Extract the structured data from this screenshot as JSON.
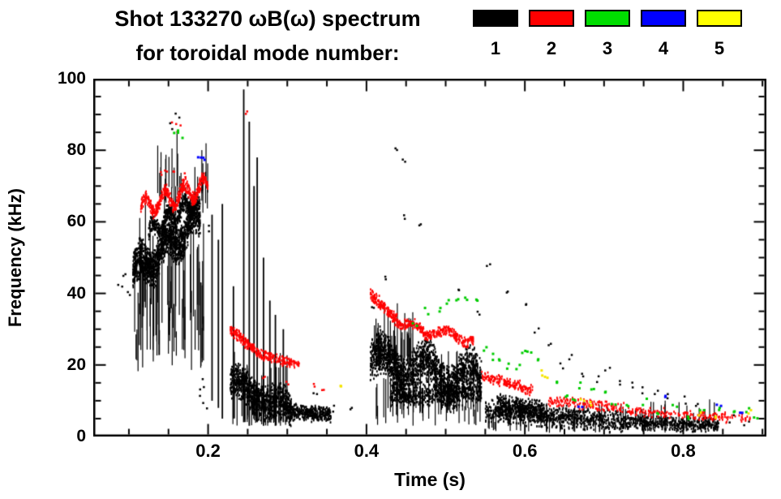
{
  "header": {
    "title_line1": "Shot 133270 ωB(ω) spectrum",
    "title_line2": "for toroidal mode number:"
  },
  "legend": {
    "modes": [
      {
        "label": "1",
        "color": "#000000"
      },
      {
        "label": "2",
        "color": "#ff0000"
      },
      {
        "label": "3",
        "color": "#00dd00"
      },
      {
        "label": "4",
        "color": "#0000ff"
      },
      {
        "label": "5",
        "color": "#ffff00"
      }
    ]
  },
  "chart_data": {
    "type": "scatter",
    "title": "Shot 133270 ωB(ω) spectrum for toroidal mode number: 1-5",
    "xlabel": "Time (s)",
    "ylabel": "Frequency (kHz)",
    "xlim": [
      0.055,
      0.905
    ],
    "ylim": [
      0,
      100
    ],
    "x_major_ticks": [
      0.2,
      0.4,
      0.6,
      0.8
    ],
    "x_tick_labels": [
      "0.2",
      "0.4",
      "0.6",
      "0.8"
    ],
    "x_minor_step": 0.05,
    "y_major_ticks": [
      0,
      20,
      40,
      60,
      80,
      100
    ],
    "y_tick_labels": [
      "0",
      "20",
      "40",
      "60",
      "80",
      "100"
    ],
    "y_minor_step": 5,
    "grid": false,
    "legend_position": "top-right",
    "series_colors": {
      "1": "#000000",
      "2": "#ff0000",
      "3": "#00cc00",
      "4": "#0000ff",
      "5": "#f5e400"
    },
    "clusters": [
      {
        "mode": "1",
        "type": "band",
        "t": [
          0.105,
          0.19
        ],
        "f": [
          45,
          61
        ],
        "spread": 6,
        "wobble": [
          3,
          2.5
        ],
        "n": 1500
      },
      {
        "mode": "1",
        "type": "band",
        "t": [
          0.125,
          0.185
        ],
        "f": [
          57,
          66
        ],
        "spread": 3,
        "wobble": [
          2,
          3
        ],
        "n": 500
      },
      {
        "mode": "1",
        "type": "streaks",
        "t": [
          0.105,
          0.195
        ],
        "fbase": [
          18,
          38
        ],
        "flen": [
          6,
          30
        ],
        "n": 70
      },
      {
        "mode": "1",
        "type": "streaks",
        "t": [
          0.13,
          0.2
        ],
        "fbase": [
          62,
          70
        ],
        "flen": [
          4,
          16
        ],
        "n": 30
      },
      {
        "mode": "1",
        "type": "lines",
        "lines": [
          [
            0.205,
            10,
            62
          ],
          [
            0.213,
            8,
            55
          ],
          [
            0.218,
            5,
            65
          ],
          [
            0.232,
            5,
            42
          ],
          [
            0.245,
            4,
            97
          ],
          [
            0.252,
            3,
            88
          ],
          [
            0.258,
            6,
            70
          ],
          [
            0.262,
            4,
            78
          ],
          [
            0.27,
            3,
            50
          ],
          [
            0.278,
            4,
            38
          ],
          [
            0.285,
            3,
            34
          ],
          [
            0.295,
            4,
            30
          ]
        ]
      },
      {
        "mode": "1",
        "type": "band",
        "t": [
          0.228,
          0.305
        ],
        "f": [
          15,
          7
        ],
        "spread": 5.5,
        "wobble": [
          1.5,
          1.5
        ],
        "n": 900
      },
      {
        "mode": "1",
        "type": "band",
        "t": [
          0.3,
          0.355
        ],
        "f": [
          7,
          6
        ],
        "spread": 2.5,
        "n": 350
      },
      {
        "mode": "1",
        "type": "streaks",
        "t": [
          0.23,
          0.3
        ],
        "fbase": [
          3,
          6
        ],
        "flen": [
          5,
          20
        ],
        "n": 40
      },
      {
        "mode": "1",
        "type": "band",
        "t": [
          0.405,
          0.545
        ],
        "f": [
          21,
          15
        ],
        "spread": 7,
        "wobble": [
          3.5,
          2.5
        ],
        "n": 1800
      },
      {
        "mode": "1",
        "type": "streaks",
        "t": [
          0.405,
          0.46
        ],
        "fbase": [
          18,
          24
        ],
        "flen": [
          5,
          16
        ],
        "n": 35
      },
      {
        "mode": "1",
        "type": "band",
        "t": [
          0.43,
          0.545
        ],
        "f": [
          11,
          12
        ],
        "spread": 3.5,
        "n": 500
      },
      {
        "mode": "1",
        "type": "streaks",
        "t": [
          0.405,
          0.545
        ],
        "fbase": [
          3,
          8
        ],
        "flen": [
          4,
          18
        ],
        "n": 50
      },
      {
        "mode": "1",
        "type": "band",
        "t": [
          0.55,
          0.73
        ],
        "f": [
          7,
          4
        ],
        "spread": 3.5,
        "n": 800
      },
      {
        "mode": "1",
        "type": "band",
        "t": [
          0.565,
          0.625
        ],
        "f": [
          9,
          7
        ],
        "spread": 3.5,
        "n": 350
      },
      {
        "mode": "1",
        "type": "band",
        "t": [
          0.73,
          0.845
        ],
        "f": [
          4,
          3
        ],
        "spread": 2.2,
        "n": 420
      },
      {
        "mode": "1",
        "type": "streaks",
        "t": [
          0.55,
          0.84
        ],
        "fbase": [
          1,
          3
        ],
        "flen": [
          2,
          8
        ],
        "n": 60
      },
      {
        "mode": "1",
        "type": "points",
        "size": 2.5,
        "reps": 2,
        "jitter": [
          0.004,
          1.2
        ],
        "points": [
          [
            0.09,
            42
          ],
          [
            0.095,
            45
          ],
          [
            0.1,
            40
          ],
          [
            0.155,
            87
          ],
          [
            0.16,
            90
          ],
          [
            0.205,
            58
          ],
          [
            0.335,
            12
          ],
          [
            0.36,
            8
          ],
          [
            0.38,
            7
          ],
          [
            0.44,
            80
          ],
          [
            0.445,
            77
          ],
          [
            0.45,
            62
          ],
          [
            0.47,
            60
          ],
          [
            0.52,
            42
          ],
          [
            0.54,
            35
          ],
          [
            0.555,
            48
          ],
          [
            0.58,
            40
          ],
          [
            0.6,
            37
          ],
          [
            0.615,
            30
          ],
          [
            0.63,
            25
          ],
          [
            0.645,
            20
          ],
          [
            0.66,
            22
          ],
          [
            0.675,
            18
          ],
          [
            0.69,
            16
          ],
          [
            0.705,
            19
          ],
          [
            0.72,
            15
          ],
          [
            0.735,
            14
          ],
          [
            0.75,
            13
          ],
          [
            0.765,
            12
          ],
          [
            0.78,
            11
          ],
          [
            0.8,
            10
          ],
          [
            0.815,
            9
          ],
          [
            0.86,
            5
          ],
          [
            0.88,
            4
          ],
          [
            0.19,
            12
          ],
          [
            0.193,
            15
          ],
          [
            0.196,
            9
          ],
          [
            0.425,
            44
          ],
          [
            0.41,
            35
          ]
        ]
      },
      {
        "mode": "2",
        "type": "band",
        "t": [
          0.115,
          0.2
        ],
        "f": [
          64,
          70
        ],
        "spread": 2.2,
        "wobble": [
          2.5,
          3.5
        ],
        "n": 500
      },
      {
        "mode": "2",
        "type": "points",
        "size": 2.5,
        "reps": 2,
        "jitter": [
          0.003,
          1
        ],
        "points": [
          [
            0.14,
            74
          ],
          [
            0.148,
            75
          ],
          [
            0.155,
            74
          ],
          [
            0.157,
            88
          ],
          [
            0.163,
            86
          ],
          [
            0.17,
            73
          ],
          [
            0.25,
            90
          ],
          [
            0.27,
            17
          ],
          [
            0.3,
            15
          ],
          [
            0.335,
            14
          ],
          [
            0.345,
            13
          ]
        ]
      },
      {
        "mode": "2",
        "type": "band",
        "t": [
          0.228,
          0.265
        ],
        "f": [
          30,
          23
        ],
        "spread": 1.8,
        "n": 160
      },
      {
        "mode": "2",
        "type": "band",
        "t": [
          0.265,
          0.315
        ],
        "f": [
          23,
          20
        ],
        "spread": 1.6,
        "n": 140
      },
      {
        "mode": "2",
        "type": "band",
        "t": [
          0.405,
          0.445
        ],
        "f": [
          40,
          31
        ],
        "spread": 2,
        "n": 180
      },
      {
        "mode": "2",
        "type": "band",
        "t": [
          0.445,
          0.535
        ],
        "f": [
          31,
          27
        ],
        "spread": 1.8,
        "wobble": [
          1.2,
          2
        ],
        "n": 300
      },
      {
        "mode": "2",
        "type": "band",
        "t": [
          0.545,
          0.61
        ],
        "f": [
          17,
          13
        ],
        "spread": 1.8,
        "n": 160
      },
      {
        "mode": "2",
        "type": "band",
        "t": [
          0.63,
          0.725
        ],
        "f": [
          10,
          8
        ],
        "spread": 1.6,
        "n": 150
      },
      {
        "mode": "2",
        "type": "band",
        "t": [
          0.73,
          0.885
        ],
        "f": [
          7,
          5
        ],
        "spread": 1.6,
        "n": 170
      },
      {
        "mode": "3",
        "type": "points",
        "size": 3,
        "reps": 2,
        "jitter": [
          0.004,
          1.2
        ],
        "points": [
          [
            0.16,
            85
          ],
          [
            0.165,
            84
          ],
          [
            0.46,
            31
          ],
          [
            0.475,
            35
          ],
          [
            0.49,
            36
          ],
          [
            0.505,
            37
          ],
          [
            0.515,
            38
          ],
          [
            0.525,
            39
          ],
          [
            0.54,
            38
          ],
          [
            0.55,
            25
          ],
          [
            0.558,
            22
          ],
          [
            0.565,
            21
          ],
          [
            0.578,
            20
          ],
          [
            0.59,
            19
          ],
          [
            0.6,
            24
          ],
          [
            0.607,
            23
          ],
          [
            0.615,
            22
          ],
          [
            0.64,
            15
          ],
          [
            0.652,
            12
          ],
          [
            0.66,
            10
          ],
          [
            0.672,
            14
          ],
          [
            0.684,
            13
          ],
          [
            0.7,
            12
          ],
          [
            0.712,
            9
          ],
          [
            0.73,
            8
          ],
          [
            0.75,
            10
          ],
          [
            0.77,
            7
          ],
          [
            0.79,
            9
          ],
          [
            0.805,
            6
          ],
          [
            0.825,
            8
          ],
          [
            0.845,
            7
          ],
          [
            0.862,
            6
          ],
          [
            0.88,
            8
          ],
          [
            0.893,
            5
          ]
        ]
      },
      {
        "mode": "4",
        "type": "points",
        "size": 3,
        "reps": 2,
        "jitter": [
          0.003,
          1
        ],
        "points": [
          [
            0.19,
            78
          ],
          [
            0.194,
            77
          ],
          [
            0.67,
            8
          ],
          [
            0.78,
            12
          ],
          [
            0.845,
            9
          ],
          [
            0.872,
            6
          ]
        ]
      },
      {
        "mode": "5",
        "type": "points",
        "size": 3,
        "reps": 2,
        "jitter": [
          0.003,
          1
        ],
        "points": [
          [
            0.365,
            14
          ],
          [
            0.62,
            18
          ],
          [
            0.627,
            17
          ],
          [
            0.672,
            10
          ],
          [
            0.683,
            9
          ],
          [
            0.82,
            6
          ],
          [
            0.838,
            5
          ],
          [
            0.883,
            7
          ]
        ]
      }
    ]
  }
}
